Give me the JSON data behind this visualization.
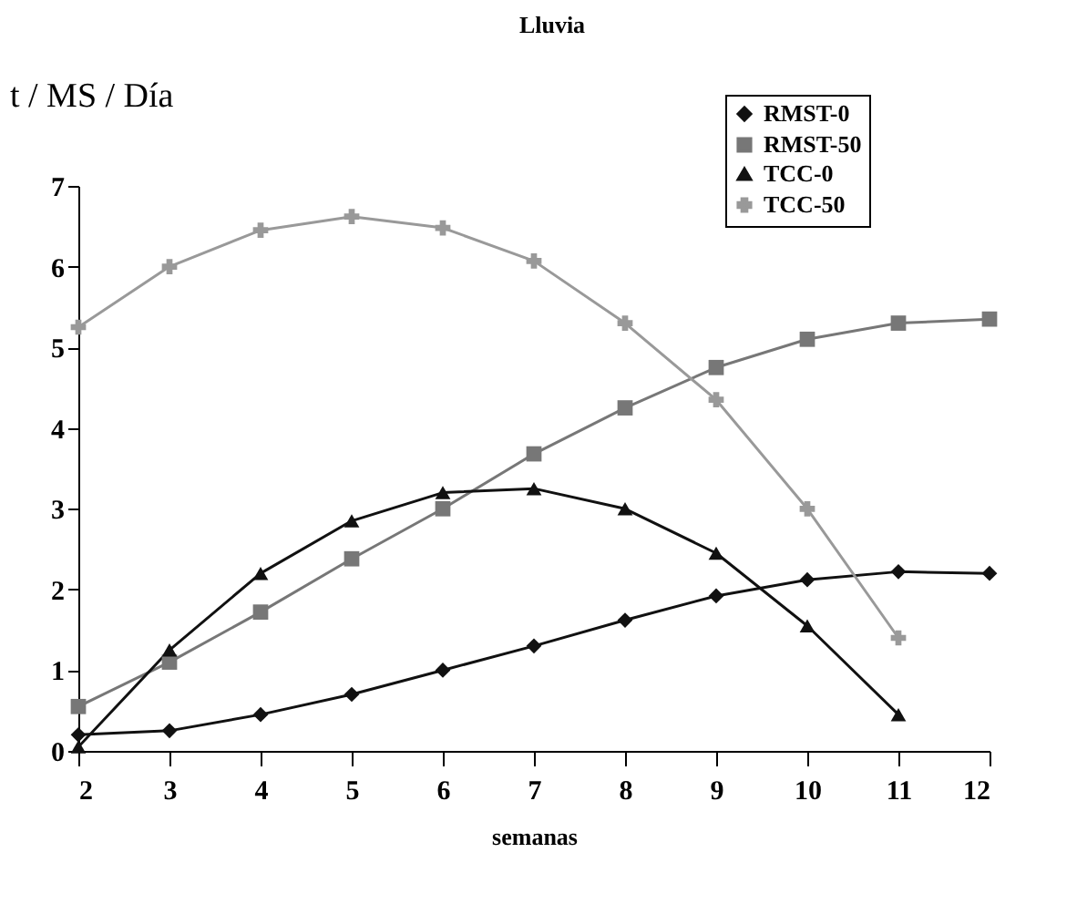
{
  "chart_data": {
    "type": "line",
    "title": "Lluvia",
    "ylabel": "t / MS / Día",
    "xlabel": "semanas",
    "x": [
      2,
      3,
      4,
      5,
      6,
      7,
      8,
      9,
      10,
      11,
      12
    ],
    "xlim": [
      2,
      12
    ],
    "xticks": [
      2,
      3,
      4,
      5,
      6,
      7,
      8,
      9,
      10,
      11,
      12
    ],
    "ylim": [
      0,
      7
    ],
    "yticks": [
      0,
      1,
      2,
      3,
      4,
      5,
      6,
      7
    ],
    "grid": false,
    "legend": "top right",
    "line_style": "solid",
    "series": [
      {
        "name": "RMST-0",
        "color": "#111111",
        "marker": "diamond",
        "values": [
          0.2,
          0.25,
          0.45,
          0.7,
          1.0,
          1.3,
          1.62,
          1.92,
          2.12,
          2.22,
          2.2
        ]
      },
      {
        "name": "RMST-50",
        "color": "#777777",
        "marker": "square",
        "values": [
          0.55,
          1.1,
          1.72,
          2.38,
          3.0,
          3.68,
          4.25,
          4.75,
          5.1,
          5.3,
          5.35
        ]
      },
      {
        "name": "TCC-0",
        "color": "#111111",
        "marker": "triangle",
        "values": [
          0.05,
          1.25,
          2.2,
          2.85,
          3.2,
          3.25,
          3.0,
          2.45,
          1.55,
          0.45,
          null
        ]
      },
      {
        "name": "TCC-50",
        "color": "#999999",
        "marker": "cross",
        "values": [
          5.25,
          6.0,
          6.45,
          6.62,
          6.48,
          6.07,
          5.3,
          4.35,
          3.0,
          1.4,
          null
        ]
      }
    ]
  }
}
